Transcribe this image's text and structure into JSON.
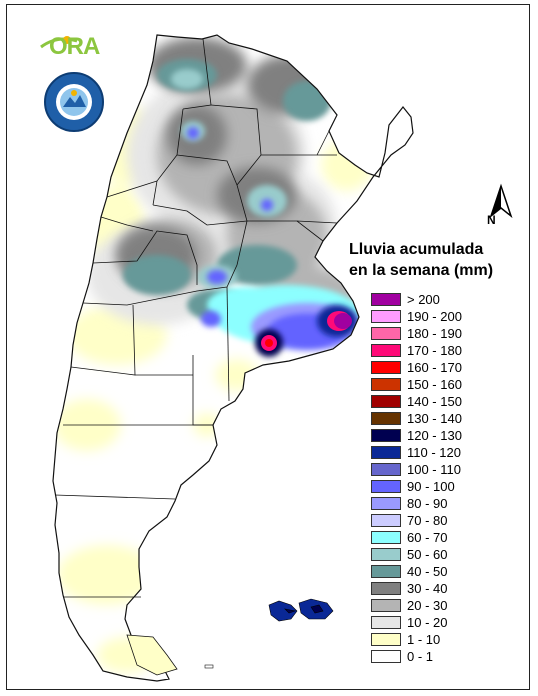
{
  "logo": {
    "brand_text": "ORA",
    "seal_text": "SERVICIO METEOROLOGICO NACIONAL ARGENTINA"
  },
  "north_arrow": {
    "label": "N"
  },
  "legend": {
    "title_line1": "Lluvia acumulada",
    "title_line2": "en la semana (mm)",
    "items": [
      {
        "label": "> 200",
        "color": "#a000a0"
      },
      {
        "label": "190 - 200",
        "color": "#ff9cff"
      },
      {
        "label": "180 - 190",
        "color": "#ff66a8"
      },
      {
        "label": "170 - 180",
        "color": "#ff0a78"
      },
      {
        "label": "160 - 170",
        "color": "#ff0000"
      },
      {
        "label": "150 - 160",
        "color": "#cc3300"
      },
      {
        "label": "140 - 150",
        "color": "#a00000"
      },
      {
        "label": "130 - 140",
        "color": "#663300"
      },
      {
        "label": "120 - 130",
        "color": "#000050"
      },
      {
        "label": "110 - 120",
        "color": "#0a2896"
      },
      {
        "label": "100 - 110",
        "color": "#6666cc"
      },
      {
        "label": "90 - 100",
        "color": "#6464ff"
      },
      {
        "label": "80 - 90",
        "color": "#9a9aff"
      },
      {
        "label": "70 - 80",
        "color": "#ccccff"
      },
      {
        "label": "60 - 70",
        "color": "#8cffff"
      },
      {
        "label": "50 - 60",
        "color": "#99cccc"
      },
      {
        "label": "40 - 50",
        "color": "#669999"
      },
      {
        "label": "30 - 40",
        "color": "#808080"
      },
      {
        "label": "20 - 30",
        "color": "#b4b4b4"
      },
      {
        "label": "10 - 20",
        "color": "#e6e6e6"
      },
      {
        "label": "1 - 10",
        "color": "#ffffc8"
      },
      {
        "label": "0 - 1",
        "color": "#ffffff"
      }
    ]
  },
  "map_colors": {
    "land": "#ffffff",
    "light_rain": "#ffffc8",
    "very_light_gray": "#e6e6e6",
    "light_gray": "#b4b4b4",
    "gray": "#808080",
    "teal": "#669999",
    "light_teal": "#99cccc",
    "cyan": "#8cffff",
    "lavender": "#ccccff",
    "periwinkle": "#9a9aff",
    "blue": "#6464ff",
    "dark_blue": "#0a2896",
    "navy": "#000050",
    "red": "#ff0000",
    "magenta": "#ff0a78",
    "purple": "#a000a0",
    "border": "#111111"
  }
}
